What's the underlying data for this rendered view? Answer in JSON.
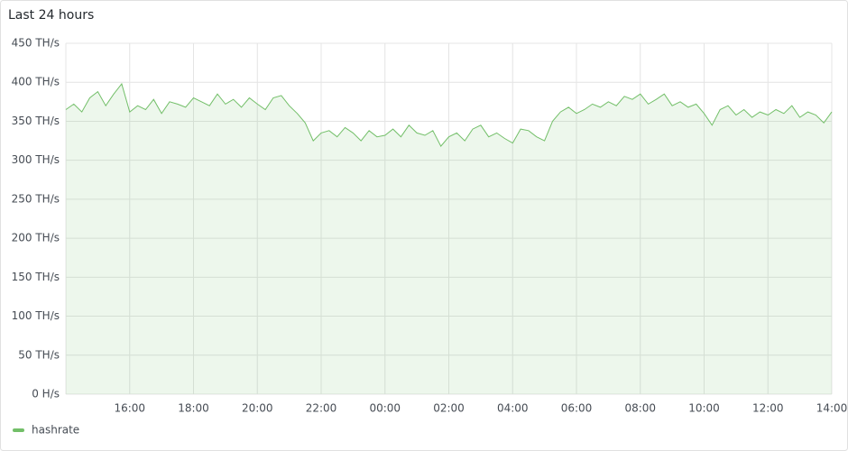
{
  "chart_data": {
    "type": "line",
    "title": "Last 24 hours",
    "x": [
      "14:00",
      "14:15",
      "14:30",
      "14:45",
      "15:00",
      "15:15",
      "15:30",
      "15:45",
      "16:00",
      "16:15",
      "16:30",
      "16:45",
      "17:00",
      "17:15",
      "17:30",
      "17:45",
      "18:00",
      "18:15",
      "18:30",
      "18:45",
      "19:00",
      "19:15",
      "19:30",
      "19:45",
      "20:00",
      "20:15",
      "20:30",
      "20:45",
      "21:00",
      "21:15",
      "21:30",
      "21:45",
      "22:00",
      "22:15",
      "22:30",
      "22:45",
      "23:00",
      "23:15",
      "23:30",
      "23:45",
      "00:00",
      "00:15",
      "00:30",
      "00:45",
      "01:00",
      "01:15",
      "01:30",
      "01:45",
      "02:00",
      "02:15",
      "02:30",
      "02:45",
      "03:00",
      "03:15",
      "03:30",
      "03:45",
      "04:00",
      "04:15",
      "04:30",
      "04:45",
      "05:00",
      "05:15",
      "05:30",
      "05:45",
      "06:00",
      "06:15",
      "06:30",
      "06:45",
      "07:00",
      "07:15",
      "07:30",
      "07:45",
      "08:00",
      "08:15",
      "08:30",
      "08:45",
      "09:00",
      "09:15",
      "09:30",
      "09:45",
      "10:00",
      "10:15",
      "10:30",
      "10:45",
      "11:00",
      "11:15",
      "11:30",
      "11:45",
      "12:00",
      "12:15",
      "12:30",
      "12:45",
      "13:00",
      "13:15",
      "13:30",
      "13:45",
      "14:00"
    ],
    "series": [
      {
        "name": "hashrate",
        "color": "#73bf69",
        "values": [
          365,
          372,
          362,
          380,
          388,
          370,
          385,
          398,
          362,
          370,
          365,
          378,
          360,
          375,
          372,
          368,
          380,
          375,
          370,
          385,
          372,
          378,
          368,
          380,
          372,
          365,
          380,
          383,
          370,
          360,
          348,
          325,
          335,
          338,
          330,
          342,
          335,
          325,
          338,
          330,
          332,
          340,
          330,
          345,
          335,
          332,
          338,
          318,
          330,
          335,
          325,
          340,
          345,
          330,
          335,
          328,
          322,
          340,
          338,
          330,
          325,
          350,
          362,
          368,
          360,
          365,
          372,
          368,
          375,
          370,
          382,
          378,
          385,
          372,
          378,
          385,
          370,
          375,
          368,
          372,
          360,
          345,
          365,
          370,
          358,
          365,
          355,
          362,
          358,
          365,
          360,
          370,
          355,
          362,
          358,
          348,
          362
        ]
      }
    ],
    "xlim": [
      "14:00",
      "14:00"
    ],
    "xticks": [
      "16:00",
      "18:00",
      "20:00",
      "22:00",
      "00:00",
      "02:00",
      "04:00",
      "06:00",
      "08:00",
      "10:00",
      "12:00",
      "14:00"
    ],
    "ylim": [
      0,
      450
    ],
    "yticks": [
      {
        "value": 0,
        "label": "0 H/s"
      },
      {
        "value": 50,
        "label": "50 TH/s"
      },
      {
        "value": 100,
        "label": "100 TH/s"
      },
      {
        "value": 150,
        "label": "150 TH/s"
      },
      {
        "value": 200,
        "label": "200 TH/s"
      },
      {
        "value": 250,
        "label": "250 TH/s"
      },
      {
        "value": 300,
        "label": "300 TH/s"
      },
      {
        "value": 350,
        "label": "350 TH/s"
      },
      {
        "value": 400,
        "label": "400 TH/s"
      },
      {
        "value": 450,
        "label": "450 TH/s"
      }
    ],
    "grid": true
  }
}
